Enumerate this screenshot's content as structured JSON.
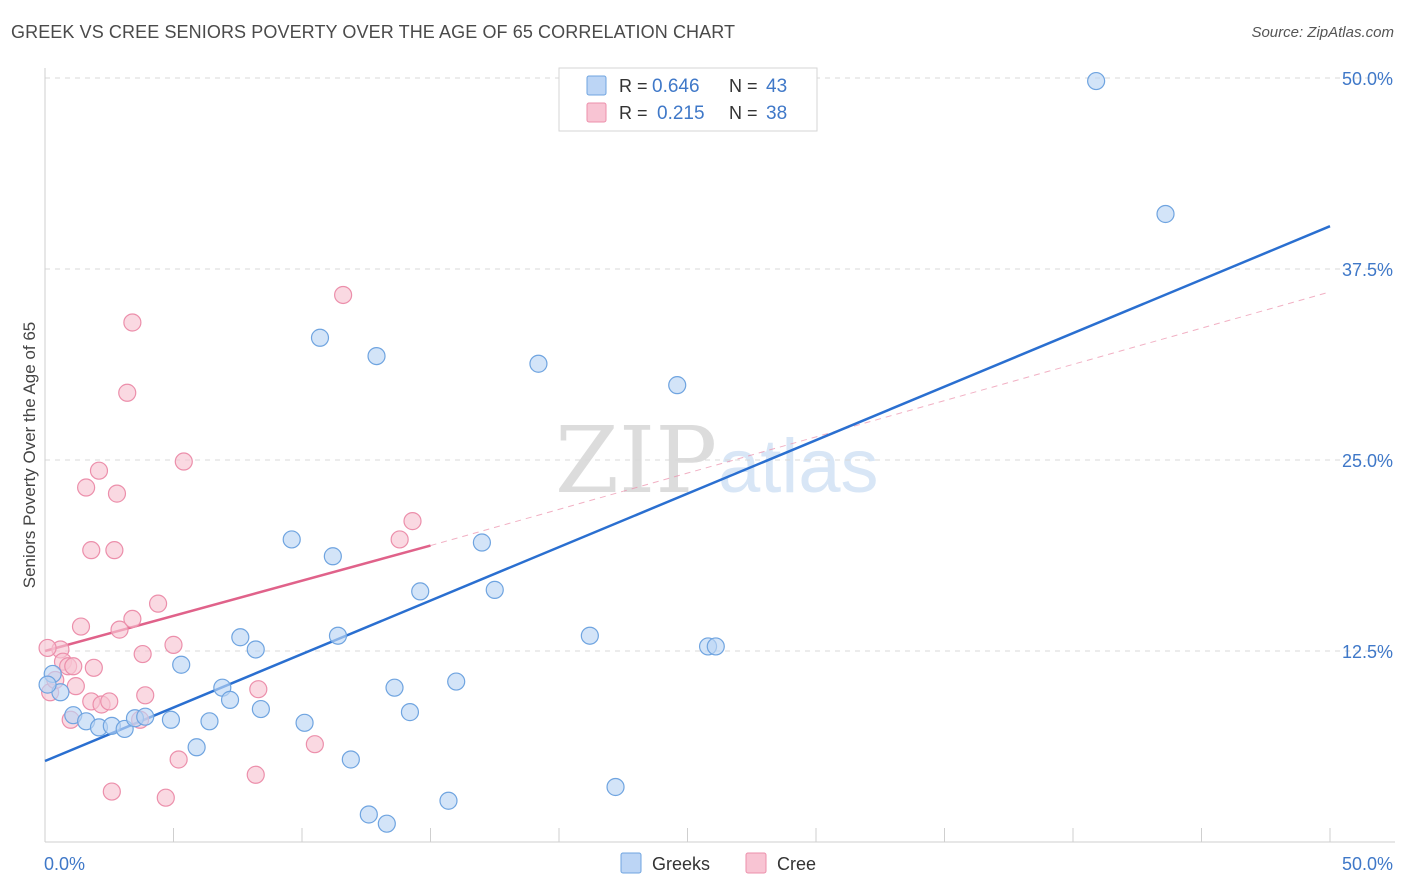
{
  "title": "GREEK VS CREE SENIORS POVERTY OVER THE AGE OF 65 CORRELATION CHART",
  "source": "Source: ZipAtlas.com",
  "watermark": {
    "zip": "ZIP",
    "atlas": "atlas"
  },
  "colors": {
    "blue": "#6fa4e0",
    "blue_fill": "#bcd5f5",
    "blue_line": "#2a6fd0",
    "pink": "#ec8fab",
    "pink_fill": "#f8c4d3",
    "pink_line": "#e0628a",
    "axis_text": "#3f78c8",
    "grid": "#d8d8d8"
  },
  "legend": {
    "rows": [
      {
        "r_label": "R = ",
        "r_value": "0.646",
        "n_label": "N = ",
        "n_value": "43"
      },
      {
        "r_label": "R = ",
        "r_value": "0.215",
        "n_label": "N = ",
        "n_value": "38"
      }
    ]
  },
  "chart_data": {
    "type": "scatter",
    "title": "GREEK VS CREE SENIORS POVERTY OVER THE AGE OF 65 CORRELATION CHART",
    "xlabel": "",
    "ylabel": "Seniors Poverty Over the Age of 65",
    "xlim": [
      0,
      50
    ],
    "ylim": [
      0,
      50
    ],
    "x_tick_labels": [
      "0.0%",
      "50.0%"
    ],
    "y_ticks": [
      12.5,
      25.0,
      37.5,
      50.0
    ],
    "y_tick_labels": [
      "12.5%",
      "25.0%",
      "37.5%",
      "50.0%"
    ],
    "grid": true,
    "legend_position": "top-center",
    "series": [
      {
        "name": "Greeks",
        "color": "#6fa4e0",
        "r": 0.646,
        "n": 43,
        "trend": {
          "x": [
            0,
            50
          ],
          "y": [
            5.3,
            40.3
          ],
          "style": "solid"
        },
        "points": [
          [
            0.3,
            11.0
          ],
          [
            0.6,
            9.8
          ],
          [
            1.1,
            8.3
          ],
          [
            1.6,
            7.9
          ],
          [
            2.1,
            7.5
          ],
          [
            2.6,
            7.6
          ],
          [
            3.1,
            7.4
          ],
          [
            3.5,
            8.1
          ],
          [
            3.9,
            8.2
          ],
          [
            4.9,
            8.0
          ],
          [
            5.3,
            11.6
          ],
          [
            5.9,
            6.2
          ],
          [
            6.4,
            7.9
          ],
          [
            6.9,
            10.1
          ],
          [
            7.2,
            9.3
          ],
          [
            7.6,
            13.4
          ],
          [
            8.2,
            12.6
          ],
          [
            8.4,
            8.7
          ],
          [
            9.6,
            19.8
          ],
          [
            10.1,
            7.8
          ],
          [
            10.7,
            33.0
          ],
          [
            11.2,
            18.7
          ],
          [
            11.4,
            13.5
          ],
          [
            11.9,
            5.4
          ],
          [
            12.6,
            1.8
          ],
          [
            12.9,
            31.8
          ],
          [
            13.3,
            1.2
          ],
          [
            13.6,
            10.1
          ],
          [
            14.2,
            8.5
          ],
          [
            14.6,
            16.4
          ],
          [
            15.7,
            2.7
          ],
          [
            16.0,
            10.5
          ],
          [
            17.0,
            19.6
          ],
          [
            17.5,
            16.5
          ],
          [
            19.2,
            31.3
          ],
          [
            21.2,
            13.5
          ],
          [
            22.2,
            3.6
          ],
          [
            24.6,
            29.9
          ],
          [
            25.8,
            12.8
          ],
          [
            26.1,
            12.8
          ],
          [
            40.9,
            49.8
          ],
          [
            43.6,
            41.1
          ],
          [
            0.1,
            10.3
          ]
        ]
      },
      {
        "name": "Cree",
        "color": "#ec8fab",
        "r": 0.215,
        "n": 38,
        "trend": {
          "x": [
            0,
            15
          ],
          "y": [
            12.5,
            19.4
          ],
          "style": "solid",
          "dashed_extension": {
            "x": [
              15,
              50
            ],
            "y": [
              19.4,
              36.0
            ]
          }
        },
        "points": [
          [
            0.2,
            9.8
          ],
          [
            0.4,
            10.6
          ],
          [
            0.6,
            12.6
          ],
          [
            0.7,
            11.8
          ],
          [
            0.9,
            11.5
          ],
          [
            1.0,
            8.0
          ],
          [
            1.2,
            10.2
          ],
          [
            1.4,
            14.1
          ],
          [
            1.6,
            23.2
          ],
          [
            1.8,
            9.2
          ],
          [
            1.8,
            19.1
          ],
          [
            1.9,
            11.4
          ],
          [
            2.1,
            24.3
          ],
          [
            2.2,
            9.0
          ],
          [
            2.5,
            9.2
          ],
          [
            2.6,
            3.3
          ],
          [
            2.7,
            19.1
          ],
          [
            2.8,
            22.8
          ],
          [
            2.9,
            13.9
          ],
          [
            3.2,
            29.4
          ],
          [
            3.4,
            14.6
          ],
          [
            3.4,
            34.0
          ],
          [
            3.7,
            8.0
          ],
          [
            3.8,
            12.3
          ],
          [
            3.9,
            9.6
          ],
          [
            4.4,
            15.6
          ],
          [
            4.7,
            2.9
          ],
          [
            5.0,
            12.9
          ],
          [
            5.2,
            5.4
          ],
          [
            5.4,
            24.9
          ],
          [
            8.2,
            4.4
          ],
          [
            8.3,
            10.0
          ],
          [
            10.5,
            6.4
          ],
          [
            11.6,
            35.8
          ],
          [
            13.8,
            19.8
          ],
          [
            14.3,
            21.0
          ],
          [
            0.1,
            12.7
          ],
          [
            1.1,
            11.5
          ]
        ]
      }
    ]
  }
}
